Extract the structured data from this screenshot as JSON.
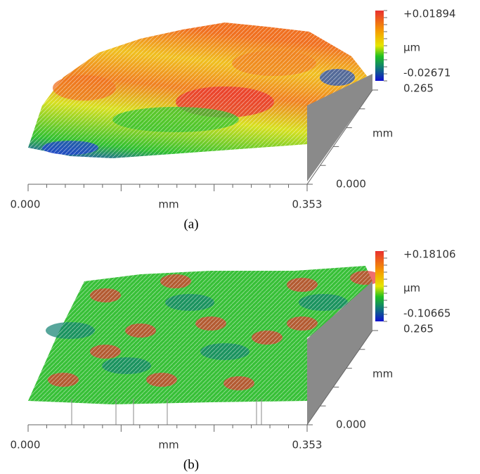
{
  "panels": [
    {
      "scale_max": "+0.01894",
      "scale_unit": "µm",
      "scale_min": "-0.02671",
      "y_max": "0.265",
      "y_unit": "mm",
      "y_min": "0.000",
      "x_min": "0.000",
      "x_unit": "mm",
      "x_max": "0.353",
      "caption": "(a)"
    },
    {
      "scale_max": "+0.18106",
      "scale_unit": "µm",
      "scale_min": "-0.10665",
      "y_max": "0.265",
      "y_unit": "mm",
      "y_min": "0.000",
      "x_min": "0.000",
      "x_unit": "mm",
      "x_max": "0.353",
      "caption": "(b)"
    }
  ]
}
